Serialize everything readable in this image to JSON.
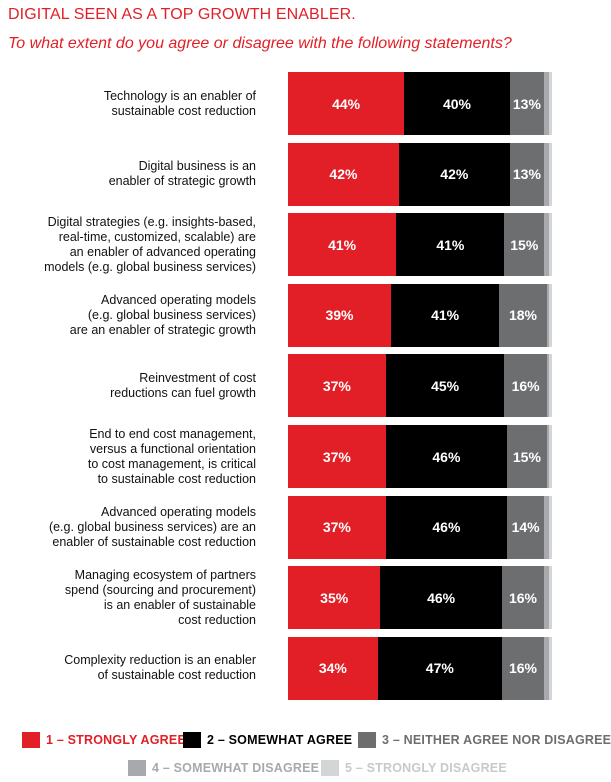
{
  "header": {
    "title": "DIGITAL SEEN AS A TOP GROWTH ENABLER.",
    "subtitle": "To what extent do you agree or disagree with the following statements?"
  },
  "chart_data": {
    "type": "bar",
    "orientation": "horizontal",
    "stacked": true,
    "xlim": [
      0,
      100
    ],
    "categories": [
      [
        "Technology is an enabler of",
        "sustainable cost reduction"
      ],
      [
        "Digital business is an",
        "enabler of strategic growth"
      ],
      [
        "Digital strategies (e.g. insights-based,",
        "real-time, customized, scalable) are",
        "an enabler of advanced operating",
        "models (e.g. global business services)"
      ],
      [
        "Advanced operating models",
        "(e.g. global business services)",
        "are an enabler of strategic growth"
      ],
      [
        "Reinvestment of cost",
        "reductions can fuel growth"
      ],
      [
        "End to end cost management,",
        "versus a functional orientation",
        "to cost management, is critical",
        "to sustainable cost reduction"
      ],
      [
        "Advanced operating models",
        "(e.g. global business services) are an",
        "enabler of sustainable cost reduction"
      ],
      [
        "Managing ecosystem of partners",
        "spend (sourcing and procurement)",
        "is an enabler of sustainable",
        "cost reduction"
      ],
      [
        "Complexity reduction is an enabler",
        "of sustainable cost reduction"
      ]
    ],
    "series": [
      {
        "name": "1 – STRONGLY AGREE",
        "color": "#e21f26",
        "text_color": "#e21f26",
        "values": [
          44,
          42,
          41,
          39,
          37,
          37,
          37,
          35,
          34
        ],
        "labels": [
          "44%",
          "42%",
          "41%",
          "39%",
          "37%",
          "37%",
          "37%",
          "35%",
          "34%"
        ]
      },
      {
        "name": "2 – SOMEWHAT AGREE",
        "color": "#000000",
        "text_color": "#000000",
        "values": [
          40,
          42,
          41,
          41,
          45,
          46,
          46,
          46,
          47
        ],
        "labels": [
          "40%",
          "42%",
          "41%",
          "41%",
          "45%",
          "46%",
          "46%",
          "46%",
          "47%"
        ]
      },
      {
        "name": "3 – NEITHER AGREE NOR DISAGREE",
        "color": "#6d6e70",
        "text_color": "#6d6e70",
        "values": [
          13,
          13,
          15,
          18,
          16,
          15,
          14,
          16,
          16
        ],
        "labels": [
          "13%",
          "13%",
          "15%",
          "18%",
          "16%",
          "15%",
          "14%",
          "16%",
          "16%"
        ]
      },
      {
        "name": "4 – SOMEWHAT DISAGREE",
        "color": "#a7a9ac",
        "text_color": "#a7a9ac",
        "values": [
          2,
          2,
          2,
          1,
          1,
          1,
          2,
          2,
          2
        ],
        "labels": [
          "",
          "",
          "",
          "",
          "",
          "",
          "",
          "",
          ""
        ]
      },
      {
        "name": "5 – STRONGLY DISAGREE",
        "color": "#d4d5d6",
        "text_color": "#c8c9cb",
        "values": [
          1,
          1,
          1,
          1,
          1,
          1,
          1,
          1,
          1
        ],
        "labels": [
          "",
          "",
          "",
          "",
          "",
          "",
          "",
          "",
          ""
        ]
      }
    ],
    "legend": "bottom"
  }
}
